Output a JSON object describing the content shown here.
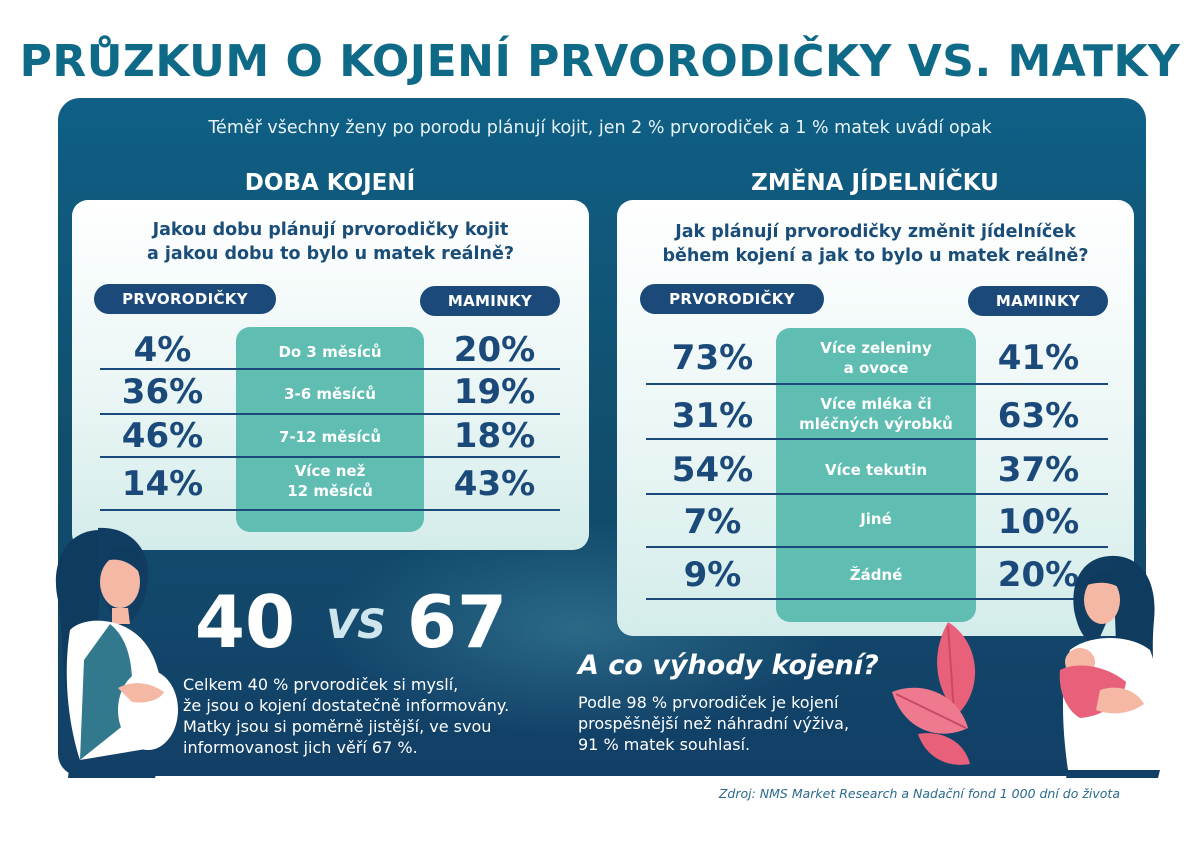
{
  "title": "PRŮZKUM O KOJENÍ PRVORODIČKY VS. MATKY",
  "subtitle": "Téměř všechny ženy po porodu plánují kojit, jen 2 % prvorodiček a 1 % matek uvádí opak",
  "left_section": {
    "title": "DOBA KOJENÍ",
    "question_line1": "Jakou dobu plánují prvorodičky kojit",
    "question_line2": "a jakou dobu to bylo u matek reálně?",
    "label_left": "PRVORODIČKY",
    "label_right": "MAMINKY",
    "rows": [
      {
        "category": "Do 3 měsíců",
        "first": "4%",
        "mothers": "20%"
      },
      {
        "category": "3-6 měsíců",
        "first": "36%",
        "mothers": "19%"
      },
      {
        "category": "7-12 měsíců",
        "first": "46%",
        "mothers": "18%"
      },
      {
        "category": "Více než 12 měsíců",
        "category_line1": "Více než",
        "category_line2": "12 měsíců",
        "first": "14%",
        "mothers": "43%"
      }
    ]
  },
  "right_section": {
    "title": "ZMĚNA JÍDELNÍČKU",
    "question_line1": "Jak plánují prvorodičky změnit jídelníček",
    "question_line2": "během kojení a jak to bylo u matek reálně?",
    "label_left": "PRVORODIČKY",
    "label_right": "MAMINKY",
    "rows": [
      {
        "category_line1": "Více zeleniny",
        "category_line2": "a ovoce",
        "first": "73%",
        "mothers": "41%"
      },
      {
        "category_line1": "Více mléka či",
        "category_line2": "mléčných výrobků",
        "first": "31%",
        "mothers": "63%"
      },
      {
        "category_line1": "Více tekutin",
        "category_line2": "",
        "first": "54%",
        "mothers": "37%"
      },
      {
        "category_line1": "Jiné",
        "category_line2": "",
        "first": "7%",
        "mothers": "10%"
      },
      {
        "category_line1": "Žádné",
        "category_line2": "",
        "first": "9%",
        "mothers": "20%"
      }
    ]
  },
  "informed": {
    "first": "40",
    "vs": "VS",
    "mothers": "67",
    "text_line1": "Celkem 40 % prvorodiček si myslí,",
    "text_line2": "že jsou o kojení dostatečně informovány.",
    "text_line3": "Matky jsou si poměrně jistější, ve svou",
    "text_line4": "informovanost jich věří 67 %."
  },
  "benefits": {
    "title": "A co výhody kojení?",
    "text_line1": "Podle 98 % prvorodiček je kojení",
    "text_line2": "prospěšnější než náhradní výživa,",
    "text_line3": "91 % matek souhlasí."
  },
  "source": "Zdroj: NMS Market Research a Nadační fond 1 000 dní do života",
  "colors": {
    "title": "#0e6a86",
    "panel": "#11506f",
    "navy": "#1b4a7a",
    "teal": "#5fbdb1",
    "pink": "#e8607a"
  }
}
